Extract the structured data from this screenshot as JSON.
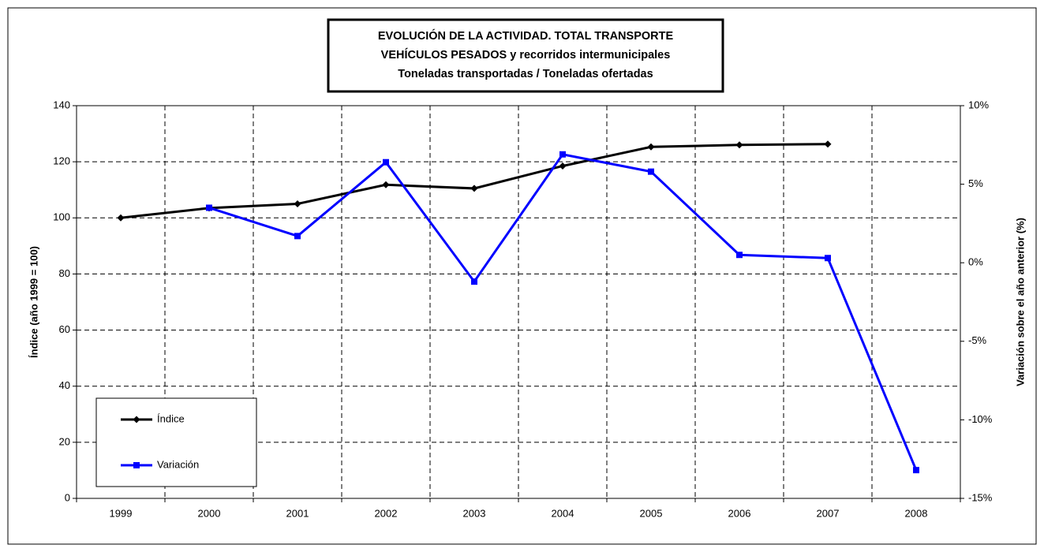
{
  "chart_data": {
    "type": "line",
    "title": [
      "EVOLUCIÓN  DE  LA  ACTIVIDAD.  TOTAL TRANSPORTE",
      "VEHÍCULOS  PESADOS  y  recorridos  intermunicipales",
      "Toneladas transportadas / Toneladas ofertadas"
    ],
    "ylabel": "Índice (año 1999 = 100)",
    "y2label": "Variación sobre el año anterior (%)",
    "categories": [
      "1999",
      "2000",
      "2001",
      "2002",
      "2003",
      "2004",
      "2005",
      "2006",
      "2007",
      "2008"
    ],
    "series": [
      {
        "name": "Índice",
        "color": "#000000",
        "marker": "diamond",
        "values": [
          100,
          103.5,
          105,
          111.8,
          110.5,
          118.5,
          125.3,
          126,
          126.3,
          null
        ]
      },
      {
        "name": "Variación",
        "color": "#0000ff",
        "marker": "square",
        "axis": "y2",
        "values": [
          null,
          3.5,
          1.7,
          6.4,
          -1.2,
          6.9,
          5.8,
          0.5,
          0.3,
          -13.2
        ]
      }
    ],
    "ylim": [
      0,
      140
    ],
    "yticks": [
      0,
      20,
      40,
      60,
      80,
      100,
      120,
      140
    ],
    "y2lim": [
      -15,
      10
    ],
    "y2ticks": [
      {
        "value": -15,
        "label": "-15%"
      },
      {
        "value": -10,
        "label": "-10%"
      },
      {
        "value": -5,
        "label": "-5%"
      },
      {
        "value": 0,
        "label": "0%"
      },
      {
        "value": 5,
        "label": "5%"
      },
      {
        "value": 10,
        "label": "10%"
      }
    ],
    "grid": true,
    "legend": "lower left"
  }
}
